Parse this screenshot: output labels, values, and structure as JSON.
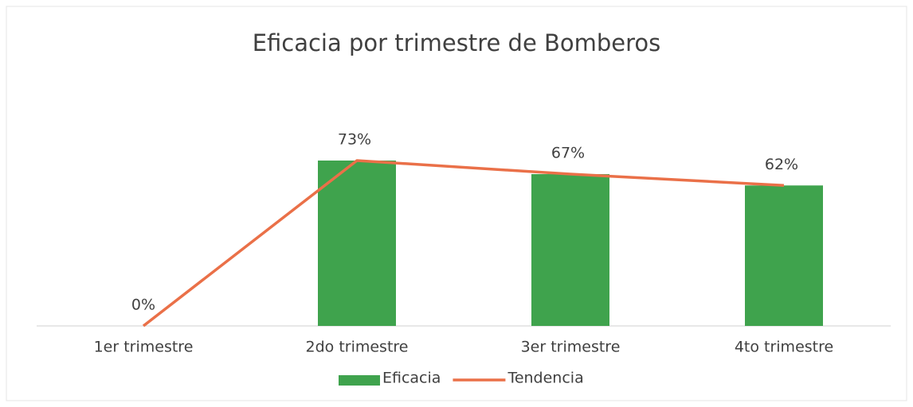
{
  "chart_data": {
    "type": "bar",
    "title": "Eficacia por trimestre de Bomberos",
    "categories": [
      "1er trimestre",
      "2do trimestre",
      "3er trimestre",
      "4to trimestre"
    ],
    "series": [
      {
        "name": "Eficacia",
        "type": "bar",
        "color": "#3fa34d",
        "values": [
          0,
          73,
          67,
          62
        ],
        "value_labels": [
          "0%",
          "73%",
          "67%",
          "62%"
        ]
      },
      {
        "name": "Tendencia",
        "type": "line",
        "color": "#ea7048",
        "values": [
          0,
          73,
          67,
          62
        ]
      }
    ],
    "ylim": [
      0,
      100
    ],
    "legend": "bottom"
  }
}
